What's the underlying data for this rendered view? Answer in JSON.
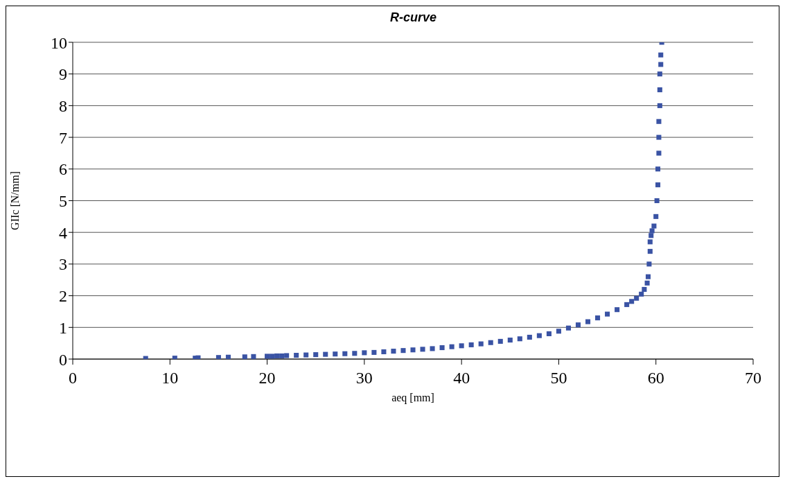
{
  "chart_data": {
    "type": "scatter",
    "title": "R-curve",
    "xlabel": "aeq [mm]",
    "ylabel": "GIIc [N/mm]",
    "x": [
      7.5,
      10.5,
      12.6,
      12.9,
      15,
      16,
      17.7,
      18.6,
      20,
      20.5,
      21,
      21.5,
      22,
      23,
      24,
      25,
      26,
      27,
      28,
      29,
      30,
      31,
      32,
      33,
      34,
      35,
      36,
      37,
      38,
      39,
      40,
      41,
      42,
      43,
      44,
      45,
      46,
      47,
      48,
      49,
      50,
      51,
      52,
      53,
      54,
      55,
      56,
      57,
      57.5,
      58,
      58.5,
      58.8,
      59.1,
      59.2,
      59.3,
      59.4,
      59.4,
      59.5,
      59.6,
      59.8,
      60,
      60.1,
      60.2,
      60.2,
      60.3,
      60.3,
      60.3,
      60.4,
      60.4,
      60.4,
      60.5,
      60.5,
      60.6
    ],
    "values": [
      0.02,
      0.03,
      0.03,
      0.04,
      0.05,
      0.06,
      0.07,
      0.08,
      0.09,
      0.09,
      0.1,
      0.1,
      0.11,
      0.12,
      0.13,
      0.14,
      0.15,
      0.16,
      0.17,
      0.18,
      0.2,
      0.21,
      0.23,
      0.25,
      0.27,
      0.29,
      0.31,
      0.33,
      0.36,
      0.39,
      0.42,
      0.45,
      0.48,
      0.52,
      0.56,
      0.6,
      0.64,
      0.69,
      0.74,
      0.8,
      0.88,
      0.98,
      1.08,
      1.18,
      1.3,
      1.42,
      1.56,
      1.72,
      1.82,
      1.92,
      2.05,
      2.2,
      2.4,
      2.6,
      3.0,
      3.4,
      3.7,
      3.9,
      4.05,
      4.2,
      4.5,
      5.0,
      5.5,
      6.0,
      6.5,
      7.0,
      7.5,
      8.0,
      8.5,
      9.0,
      9.3,
      9.6,
      10
    ],
    "color": "#3a53a4",
    "marker": "square",
    "grid": "y",
    "xlim": [
      0,
      70
    ],
    "xticks": [
      0,
      10,
      20,
      30,
      40,
      50,
      60,
      70
    ],
    "ylim": [
      0,
      10
    ],
    "yticks": [
      0,
      1,
      2,
      3,
      4,
      5,
      6,
      7,
      8,
      9,
      10
    ]
  }
}
